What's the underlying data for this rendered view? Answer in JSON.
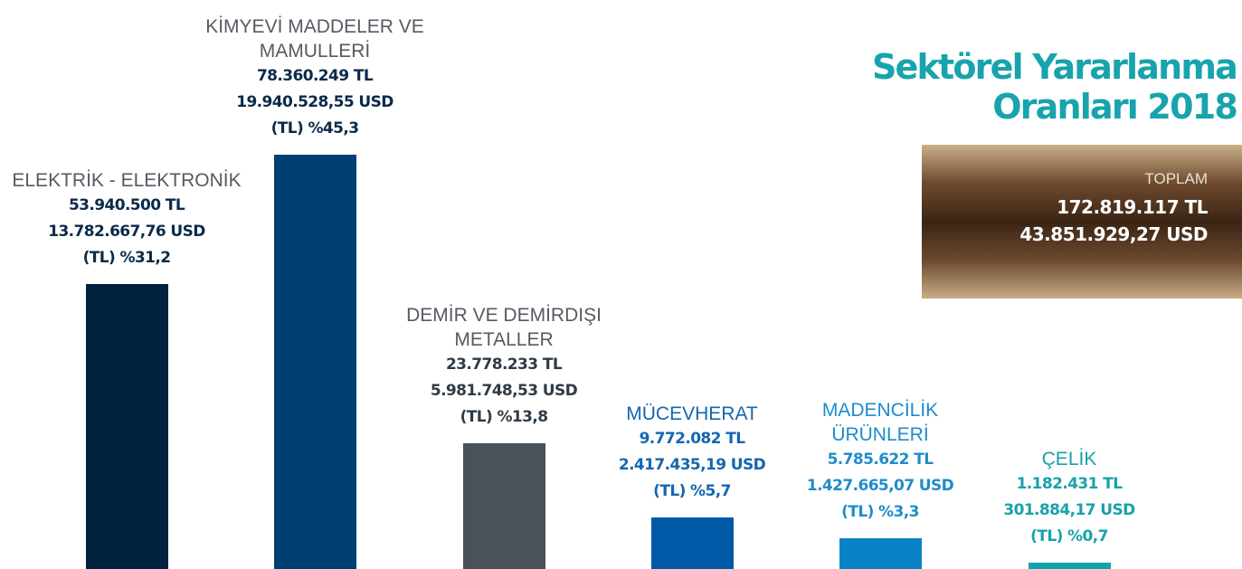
{
  "chart_data": {
    "type": "bar",
    "title": "Sektörel Yararlanma Oranları 2018",
    "categories": [
      "ELEKTRİK - ELEKTRONİK",
      "KİMYEVİ MADDELER VE MAMULLERİ",
      "DEMİR VE DEMİRDIŞI METALLER",
      "MÜCEVHERAT",
      "MADENCİLİK ÜRÜNLERİ",
      "ÇELİK"
    ],
    "values": [
      53940500,
      78360249,
      23778233,
      9772082,
      5785622,
      1182431
    ],
    "value_labels": [
      "53.940.500 TL",
      "78.360.249 TL",
      "23.778.233 TL",
      "9.772.082 TL",
      "5.785.622 TL",
      "1.182.431 TL"
    ],
    "usd_labels": [
      "13.782.667,76 USD",
      "19.940.528,55 USD",
      "5.981.748,53 USD",
      "2.417.435,19 USD",
      "1.427.665,07 USD",
      "301.884,17 USD"
    ],
    "share_labels": [
      "(TL) %31,2",
      "(TL) %45,3",
      "(TL) %13,8",
      "(TL) %5,7",
      "(TL) %3,3",
      "(TL) %0,7"
    ],
    "colors": [
      "#00223f",
      "#003f72",
      "#4a5157",
      "#0059a7",
      "#0a82c8",
      "#12a3ae"
    ],
    "label_colors": [
      "#0b2a4a",
      "#0b2a4a",
      "#2f3b47",
      "#1466b0",
      "#1e8ccb",
      "#17a2aa"
    ],
    "total": {
      "label": "TOPLAM",
      "tl": "172.819.117 TL",
      "usd": "43.851.929,27 USD"
    }
  }
}
